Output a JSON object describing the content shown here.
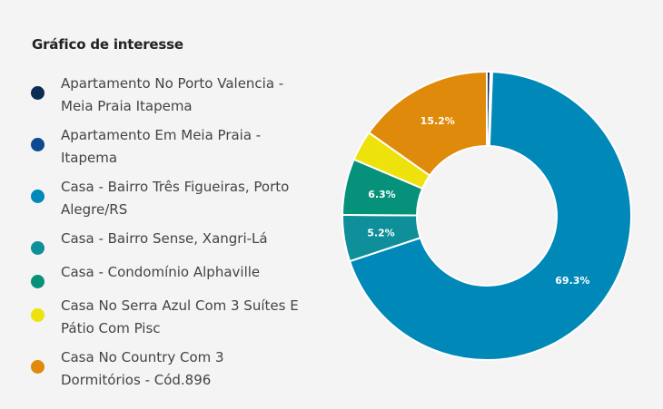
{
  "title": "Gráfico de interesse",
  "chart_data": {
    "type": "pie",
    "title": "Gráfico de interesse",
    "legend_position": "left",
    "hole": "donut",
    "slices": [
      {
        "label": "Apartamento No Porto Valencia - Meia Praia Itapema",
        "value": 0.4,
        "color": "#0d2c54",
        "display": ""
      },
      {
        "label": "Apartamento Em Meia Praia - Itapema",
        "value": 0.2,
        "color": "#0b4a93",
        "display": ""
      },
      {
        "label": "Casa - Bairro Três Figueiras, Porto Alegre/RS",
        "value": 69.3,
        "color": "#0088b8",
        "display": "69.3%"
      },
      {
        "label": "Casa - Bairro Sense, Xangri-Lá",
        "value": 5.2,
        "color": "#0e8f99",
        "display": "5.2%"
      },
      {
        "label": "Casa - Condomínio Alphaville",
        "value": 6.3,
        "color": "#06917a",
        "display": "6.3%"
      },
      {
        "label": "Casa No Serra Azul Com 3 Suítes E Pátio Com Pisc",
        "value": 3.4,
        "color": "#ede20b",
        "display": ""
      },
      {
        "label": "Casa No Country Com 3 Dormitórios - Cód.896",
        "value": 15.2,
        "color": "#e08a0b",
        "display": "15.2%"
      }
    ]
  }
}
